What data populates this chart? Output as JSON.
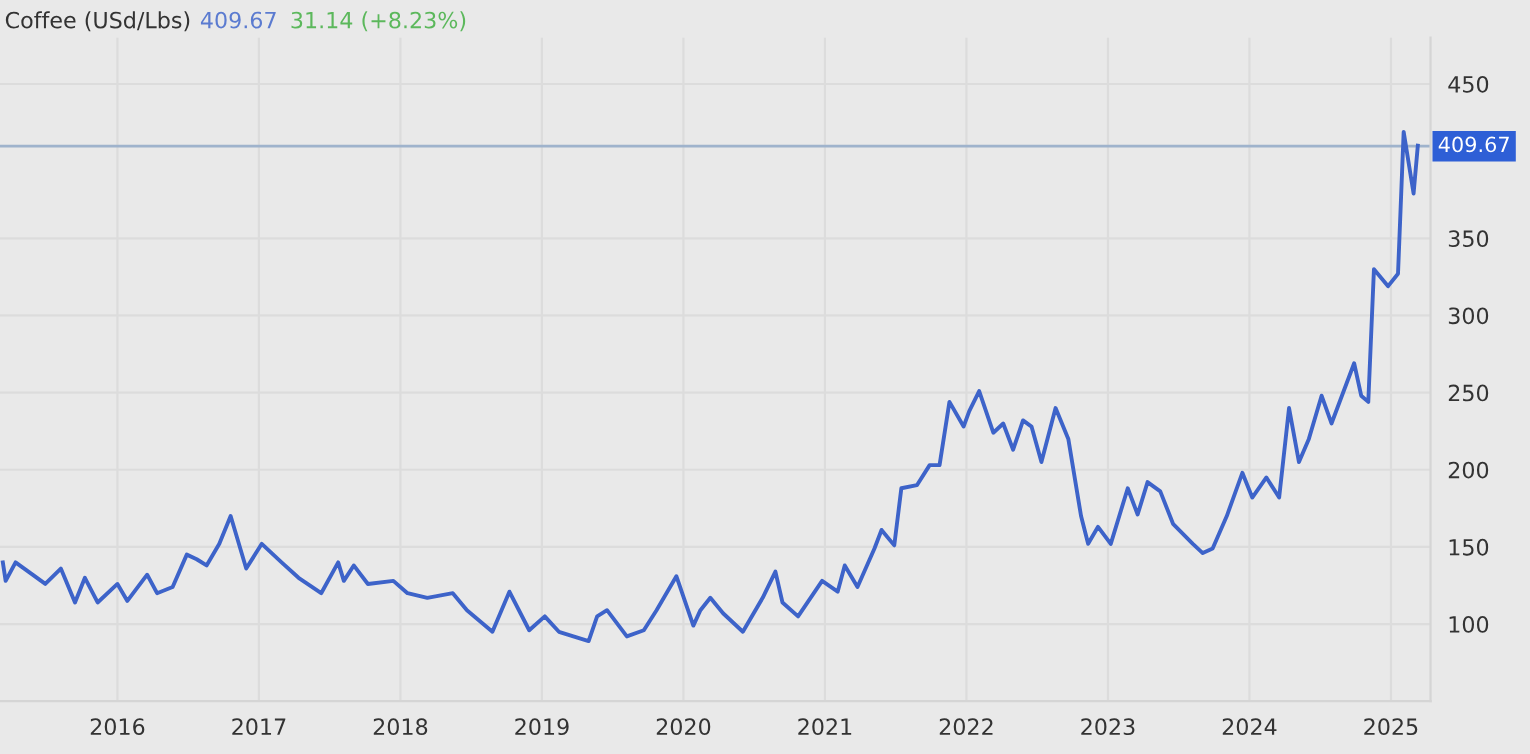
{
  "chart_data": {
    "type": "line",
    "title": "Coffee (USd/Lbs)",
    "annotations": [
      "409.67",
      "31.14 (+8.23%)"
    ],
    "x": [
      2015.19,
      2015.21,
      2015.28,
      2015.4,
      2015.49,
      2015.6,
      2015.7,
      2015.77,
      2015.86,
      2016.0,
      2016.07,
      2016.21,
      2016.28,
      2016.39,
      2016.49,
      2016.56,
      2016.63,
      2016.72,
      2016.8,
      2016.91,
      2017.02,
      2017.16,
      2017.28,
      2017.44,
      2017.56,
      2017.6,
      2017.67,
      2017.77,
      2017.95,
      2018.05,
      2018.19,
      2018.37,
      2018.47,
      2018.65,
      2018.77,
      2018.91,
      2019.02,
      2019.12,
      2019.33,
      2019.39,
      2019.46,
      2019.6,
      2019.72,
      2019.81,
      2019.95,
      2020.07,
      2020.12,
      2020.19,
      2020.28,
      2020.42,
      2020.56,
      2020.65,
      2020.7,
      2020.81,
      2020.98,
      2021.09,
      2021.14,
      2021.23,
      2021.35,
      2021.4,
      2021.49,
      2021.54,
      2021.65,
      2021.74,
      2021.81,
      2021.88,
      2021.98,
      2022.02,
      2022.09,
      2022.19,
      2022.26,
      2022.33,
      2022.4,
      2022.46,
      2022.53,
      2022.63,
      2022.72,
      2022.81,
      2022.86,
      2022.93,
      2023.02,
      2023.14,
      2023.21,
      2023.28,
      2023.37,
      2023.46,
      2023.6,
      2023.67,
      2023.74,
      2023.84,
      2023.95,
      2024.02,
      2024.12,
      2024.21,
      2024.28,
      2024.35,
      2024.42,
      2024.51,
      2024.58,
      2024.74,
      2024.79,
      2024.84,
      2024.88,
      2024.98,
      2025.05,
      2025.09,
      2025.16,
      2025.19
    ],
    "series": [
      {
        "color": "#3d63c9",
        "values": [
          140,
          128,
          140,
          132,
          126,
          136,
          114,
          130,
          114,
          126,
          115,
          132,
          120,
          124,
          145,
          142,
          138,
          152,
          170,
          136,
          152,
          140,
          130,
          120,
          140,
          128,
          138,
          126,
          128,
          120,
          117,
          120,
          109,
          95,
          121,
          96,
          105,
          95,
          89,
          105,
          109,
          92,
          96,
          109,
          131,
          99,
          109,
          117,
          107,
          95,
          117,
          134,
          114,
          105,
          128,
          121,
          138,
          124,
          149,
          161,
          151,
          188,
          190,
          203,
          203,
          244,
          228,
          238,
          251,
          224,
          230,
          213,
          232,
          228,
          205,
          240,
          220,
          170,
          152,
          163,
          152,
          188,
          171,
          192,
          186,
          165,
          152,
          146,
          149,
          170,
          198,
          182,
          195,
          182,
          240,
          205,
          220,
          248,
          230,
          269,
          248,
          244,
          330,
          319,
          327,
          419,
          379,
          410
        ]
      }
    ],
    "xlim": [
      2015.17,
      2025.28
    ],
    "ylim": [
      50,
      480
    ],
    "xticks": [
      2016,
      2017,
      2018,
      2019,
      2020,
      2021,
      2022,
      2023,
      2024,
      2025
    ],
    "yticks": [
      100,
      150,
      200,
      250,
      300,
      350,
      450
    ],
    "ref_lines": [
      {
        "axis": "y",
        "value": 409.67,
        "label": "409.67",
        "color": "#9fb3cc"
      }
    ],
    "grid": true,
    "legend": false,
    "marker": "none",
    "line_style": "solid"
  }
}
